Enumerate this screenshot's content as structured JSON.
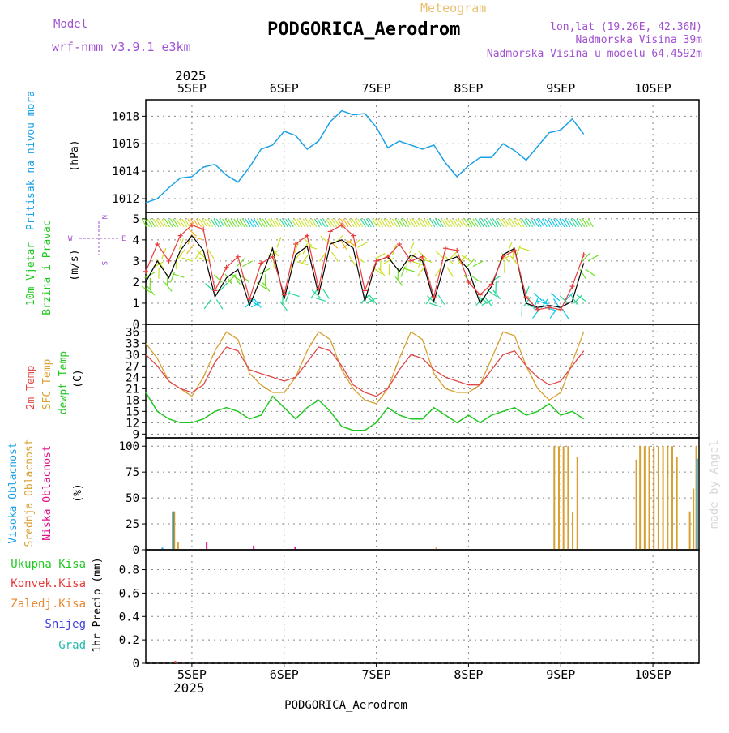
{
  "header": {
    "model_label": "Model",
    "model_name": "wrf-nmm_v3.9.1 e3km",
    "product": "Meteogram",
    "station": "PODGORICA_Aerodrom",
    "lonlat": "lon,lat (19.26E, 42.36N)",
    "elevation": "Nadmorska Visina 39m",
    "model_elevation": "Nadmorska Visina u modelu 64.4592m",
    "year_top": "2025",
    "year_bottom": "2025",
    "footer_station": "PODGORICA_Aerodrom",
    "credit": "made by Angel"
  },
  "colors": {
    "pressure": "#1aa0e6",
    "wind_speed": "#000000",
    "gust": "#e83c3c",
    "t2m": "#e04848",
    "sfc": "#d8a030",
    "dewpt": "#22c822",
    "high_cloud": "#1aa0e6",
    "mid_cloud": "#d8a030",
    "low_cloud": "#e0108a",
    "total_precip": "#22c822",
    "conv_precip": "#e83c3c",
    "frozen_precip": "#e88830",
    "snow": "#4040e0",
    "graupel": "#20b8b0",
    "grid": "#888888"
  },
  "chart_data": [
    {
      "type": "line",
      "id": "pressure",
      "ylabel_colored": "Pritisak na nivou mora",
      "ylabel": "(hPa)",
      "x_ticks": [
        "5SEP",
        "6SEP",
        "7SEP",
        "8SEP",
        "9SEP",
        "10SEP"
      ],
      "ylim": [
        1011,
        1019.2
      ],
      "y_ticks": [
        1012,
        1014,
        1016,
        1018
      ],
      "x_range": [
        -0.5,
        5.5
      ],
      "x_step": 0.125,
      "series": [
        {
          "name": "Sea level pressure",
          "values": [
            1011.7,
            1012.0,
            1012.8,
            1013.5,
            1013.6,
            1014.3,
            1014.5,
            1013.7,
            1013.2,
            1014.3,
            1015.6,
            1015.9,
            1016.9,
            1016.6,
            1015.6,
            1016.2,
            1017.6,
            1018.4,
            1018.1,
            1018.2,
            1017.2,
            1015.7,
            1016.2,
            1015.9,
            1015.6,
            1015.9,
            1014.6,
            1013.6,
            1014.4,
            1015.0,
            1015.0,
            1016.0,
            1015.5,
            1014.8,
            1015.8,
            1016.8,
            1017.0,
            1017.8,
            1016.7
          ]
        }
      ]
    },
    {
      "type": "line",
      "id": "wind",
      "ylabel_colored": "10m Vjetar Brzina i Pravac",
      "ylabel_colored_lines": [
        "10m Vjetar",
        "Brzina i Pravac"
      ],
      "ylabel": "(m/s)",
      "compass": {
        "n": "N",
        "s": "S",
        "e": "E",
        "w": "W"
      },
      "ylim": [
        0,
        5.3
      ],
      "y_ticks": [
        0,
        1,
        2,
        3,
        4,
        5
      ],
      "x_range": [
        -0.5,
        5.5
      ],
      "x_step": 0.125,
      "series": [
        {
          "name": "Wind speed",
          "values": [
            2.0,
            3.0,
            2.2,
            3.5,
            4.2,
            3.5,
            1.3,
            2.2,
            2.6,
            0.9,
            2.2,
            3.6,
            1.2,
            3.3,
            3.7,
            1.4,
            3.8,
            4.0,
            3.6,
            1.1,
            3.0,
            3.2,
            2.5,
            3.3,
            3.0,
            1.1,
            3.0,
            3.2,
            2.6,
            1.0,
            1.8,
            3.3,
            3.6,
            1.0,
            0.8,
            0.9,
            0.8,
            1.1,
            2.9
          ]
        },
        {
          "name": "Wind gust",
          "values": [
            2.5,
            3.8,
            3.0,
            4.2,
            4.7,
            4.5,
            1.6,
            2.7,
            3.2,
            1.2,
            2.9,
            3.2,
            1.4,
            3.8,
            4.2,
            1.7,
            4.4,
            4.7,
            4.2,
            1.6,
            3.0,
            3.2,
            3.8,
            3.0,
            3.2,
            1.3,
            3.6,
            3.5,
            2.0,
            1.4,
            1.9,
            3.2,
            3.5,
            1.3,
            0.7,
            0.8,
            0.7,
            1.8,
            3.3
          ]
        }
      ]
    },
    {
      "type": "line",
      "id": "temperature",
      "ylabel_colored_lines": [
        "2m Temp",
        "SFC Temp",
        "dewpt Temp"
      ],
      "ylabel": "(C)",
      "ylim": [
        8,
        38
      ],
      "y_ticks": [
        9,
        12,
        15,
        18,
        21,
        24,
        27,
        30,
        33,
        36
      ],
      "x_range": [
        -0.5,
        5.5
      ],
      "x_step": 0.125,
      "series": [
        {
          "name": "2m Temp",
          "values": [
            30,
            27,
            23,
            21,
            20,
            22,
            28,
            32,
            31,
            26,
            25,
            24,
            23,
            24,
            28,
            32,
            31,
            27,
            22,
            20,
            19,
            21,
            26,
            30,
            29,
            26,
            24,
            23,
            22,
            22,
            26,
            30,
            31,
            27,
            24,
            22,
            23,
            27,
            31
          ]
        },
        {
          "name": "SFC Temp",
          "values": [
            33,
            29,
            23,
            21,
            19,
            24,
            31,
            36,
            34,
            25,
            22,
            20,
            20,
            24,
            31,
            36,
            34,
            26,
            21,
            18,
            17,
            21,
            29,
            36,
            34,
            25,
            21,
            20,
            20,
            22,
            29,
            36,
            35,
            27,
            21,
            18,
            20,
            28,
            36
          ]
        },
        {
          "name": "dewpt Temp",
          "values": [
            20,
            15,
            13,
            12,
            12,
            13,
            15,
            16,
            15,
            13,
            14,
            19,
            16,
            13,
            16,
            18,
            15,
            11,
            10,
            10,
            12,
            16,
            14,
            13,
            13,
            16,
            14,
            12,
            14,
            12,
            14,
            15,
            16,
            14,
            15,
            17,
            14,
            15,
            13
          ]
        }
      ]
    },
    {
      "type": "bar",
      "id": "clouds",
      "ylabel_colored_lines": [
        "Visoka Oblacnost",
        "Srednja Oblacnost",
        "Niska Oblacnost"
      ],
      "ylabel": "(%)",
      "ylim": [
        0,
        108
      ],
      "y_ticks": [
        0,
        25,
        50,
        75,
        100
      ],
      "x_range": [
        -0.5,
        5.5
      ],
      "series": [
        {
          "name": "Srednja Oblacnost",
          "points": [
            {
              "x": -0.21,
              "value": 37
            },
            {
              "x": -0.19,
              "value": 37
            },
            {
              "x": -0.15,
              "value": 7
            },
            {
              "x": 2.65,
              "value": 2
            },
            {
              "x": 3.93,
              "value": 100
            },
            {
              "x": 3.98,
              "value": 100
            },
            {
              "x": 4.03,
              "value": 100
            },
            {
              "x": 4.08,
              "value": 100
            },
            {
              "x": 4.13,
              "value": 36
            },
            {
              "x": 4.18,
              "value": 90
            },
            {
              "x": 4.82,
              "value": 87
            },
            {
              "x": 4.86,
              "value": 100
            },
            {
              "x": 4.91,
              "value": 100
            },
            {
              "x": 4.96,
              "value": 100
            },
            {
              "x": 5.01,
              "value": 100
            },
            {
              "x": 5.06,
              "value": 100
            },
            {
              "x": 5.11,
              "value": 100
            },
            {
              "x": 5.16,
              "value": 100
            },
            {
              "x": 5.21,
              "value": 100
            },
            {
              "x": 5.26,
              "value": 90
            },
            {
              "x": 5.4,
              "value": 37
            },
            {
              "x": 5.44,
              "value": 59
            },
            {
              "x": 5.47,
              "value": 100
            }
          ]
        },
        {
          "name": "Visoka Oblacnost",
          "points": [
            {
              "x": -0.32,
              "value": 2
            },
            {
              "x": -0.2,
              "value": 37
            },
            {
              "x": 5.48,
              "value": 88
            }
          ]
        },
        {
          "name": "Niska Oblacnost",
          "points": [
            {
              "x": 0.16,
              "value": 7
            },
            {
              "x": 0.67,
              "value": 4
            },
            {
              "x": 1.12,
              "value": 3
            }
          ]
        }
      ]
    },
    {
      "type": "bar",
      "id": "precip",
      "ylabel": "1hr Precip (mm)",
      "legend": [
        "Ukupna Kisa",
        "Konvek.Kisa",
        "Zaledj.Kisa",
        "Snijeg",
        "Grad"
      ],
      "ylim": [
        0,
        0.97
      ],
      "y_ticks": [
        0,
        0.2,
        0.4,
        0.6,
        0.8
      ],
      "x_range": [
        -0.5,
        5.5
      ],
      "series": [
        {
          "name": "Konvek.Kisa",
          "points": [
            {
              "x": -0.18,
              "value": 0.02
            }
          ]
        }
      ]
    }
  ]
}
